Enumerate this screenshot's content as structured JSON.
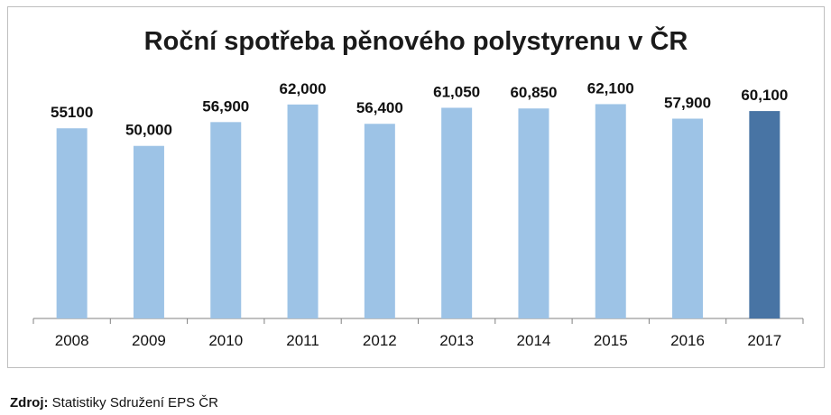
{
  "chart_data": {
    "type": "bar",
    "title": "Roční spotřeba pěnového polystyrenu v ČR",
    "categories": [
      "2008",
      "2009",
      "2010",
      "2011",
      "2012",
      "2013",
      "2014",
      "2015",
      "2016",
      "2017"
    ],
    "values": [
      55100,
      50000,
      56900,
      62000,
      56400,
      61050,
      60850,
      62100,
      57900,
      60100
    ],
    "data_labels": [
      "55100",
      "50,000",
      "56,900",
      "62,000",
      "56,400",
      "61,050",
      "60,850",
      "62,100",
      "57,900",
      "60,100"
    ],
    "highlighted_category": "2017",
    "ylim": [
      0,
      63000
    ],
    "grid": false,
    "colors": {
      "bar": "#9dc3e6",
      "highlight": "#4874a4"
    }
  },
  "source": {
    "label": "Zdroj:",
    "text": "Statistiky Sdružení EPS ČR"
  }
}
